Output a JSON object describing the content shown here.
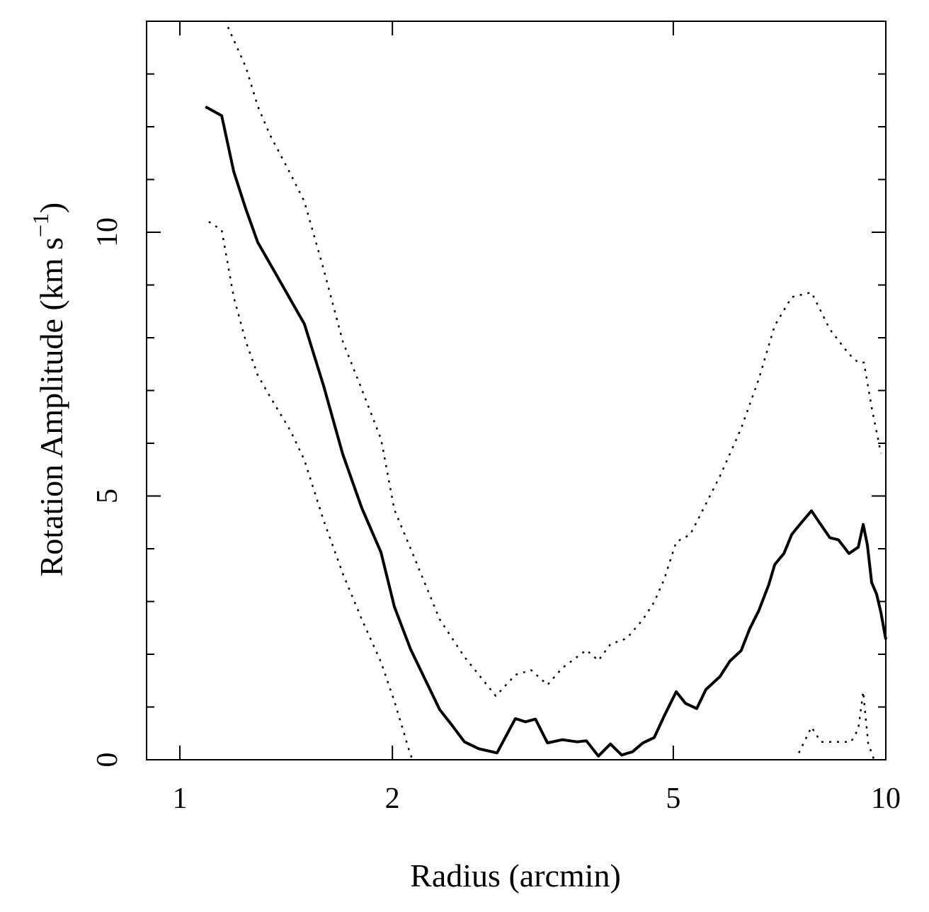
{
  "chart_data": {
    "type": "line",
    "xlabel": "Radius (arcmin)",
    "ylabel": "Rotation Amplitude (km s",
    "ylabel_sup": "−1",
    "ylabel_end": ")",
    "xscale": "log",
    "xlim": [
      0.897,
      10
    ],
    "ylim": [
      0,
      14
    ],
    "xticks": [
      1,
      2,
      5,
      10
    ],
    "yticks": [
      0,
      5,
      10
    ],
    "yminorticks": [
      1,
      2,
      3,
      4,
      6,
      7,
      8,
      9,
      11,
      12,
      13
    ],
    "series": [
      {
        "color": "#000000",
        "dash": "solid",
        "x": [
          1.087,
          1.146,
          1.192,
          1.24,
          1.289,
          1.341,
          1.501,
          1.598,
          1.701,
          1.81,
          1.927,
          2.013,
          2.123,
          2.334,
          2.427,
          2.53,
          2.651,
          2.813,
          2.987,
          3.086,
          3.189,
          3.317,
          3.481,
          3.655,
          3.765,
          3.916,
          4.073,
          4.225,
          4.375,
          4.528,
          4.698,
          4.853,
          5.048,
          5.201,
          5.396,
          5.561,
          5.823,
          6.014,
          6.239,
          6.414,
          6.609,
          6.826,
          6.96,
          7.172,
          7.356,
          7.597,
          7.846,
          8.068,
          8.333,
          8.567,
          8.869,
          9.141,
          9.289,
          9.418,
          9.549,
          9.705,
          9.842,
          10.0
        ],
        "values": [
          12.38,
          12.21,
          11.15,
          10.44,
          9.81,
          9.41,
          8.26,
          7.09,
          5.79,
          4.77,
          3.93,
          2.9,
          2.09,
          0.95,
          0.66,
          0.34,
          0.21,
          0.13,
          0.78,
          0.72,
          0.77,
          0.32,
          0.38,
          0.34,
          0.36,
          0.07,
          0.3,
          0.09,
          0.15,
          0.32,
          0.42,
          0.83,
          1.29,
          1.07,
          0.97,
          1.33,
          1.58,
          1.87,
          2.07,
          2.48,
          2.83,
          3.32,
          3.7,
          3.91,
          4.27,
          4.5,
          4.72,
          4.48,
          4.21,
          4.17,
          3.91,
          4.03,
          4.46,
          4.07,
          3.36,
          3.14,
          2.79,
          2.28
        ]
      },
      {
        "color": "#000000",
        "dash": "dotted",
        "x": [
          1.17,
          1.24,
          1.289,
          1.341,
          1.434,
          1.501,
          1.598,
          1.701,
          1.81,
          1.927,
          2.013,
          2.123,
          2.334,
          2.53,
          2.802,
          2.987,
          3.145,
          3.317,
          3.481,
          3.765,
          3.916,
          4.073,
          4.295,
          4.528,
          4.698,
          4.853,
          5.048,
          5.284,
          5.561,
          5.823,
          6.239,
          6.609,
          6.96,
          7.356,
          7.846,
          8.333,
          8.869,
          9.141,
          9.311,
          9.549,
          9.842
        ],
        "values": [
          13.89,
          13.13,
          12.39,
          11.85,
          11.11,
          10.58,
          9.3,
          7.93,
          7.02,
          6.08,
          4.74,
          4.0,
          2.66,
          1.95,
          1.21,
          1.61,
          1.7,
          1.42,
          1.74,
          2.08,
          1.88,
          2.19,
          2.3,
          2.66,
          2.99,
          3.42,
          4.13,
          4.27,
          4.85,
          5.38,
          6.28,
          7.22,
          8.23,
          8.77,
          8.86,
          8.16,
          7.69,
          7.53,
          7.53,
          6.68,
          5.81
        ]
      },
      {
        "color": "#000000",
        "dash": "dotted",
        "x": [
          1.099,
          1.146,
          1.192,
          1.24,
          1.289,
          1.341,
          1.434,
          1.501,
          1.598,
          1.701,
          1.81,
          1.927,
          2.013,
          2.113,
          2.135,
          null,
          7.531,
          7.846,
          8.091,
          8.455,
          8.927,
          9.141,
          9.289,
          9.441,
          9.623
        ],
        "values": [
          10.2,
          10.04,
          8.77,
          7.93,
          7.29,
          6.89,
          6.24,
          5.68,
          4.54,
          3.53,
          2.66,
          1.85,
          1.11,
          0.17,
          0,
          null,
          0.13,
          0.62,
          0.34,
          0.34,
          0.34,
          0.58,
          1.29,
          0.31,
          0
        ]
      }
    ]
  }
}
